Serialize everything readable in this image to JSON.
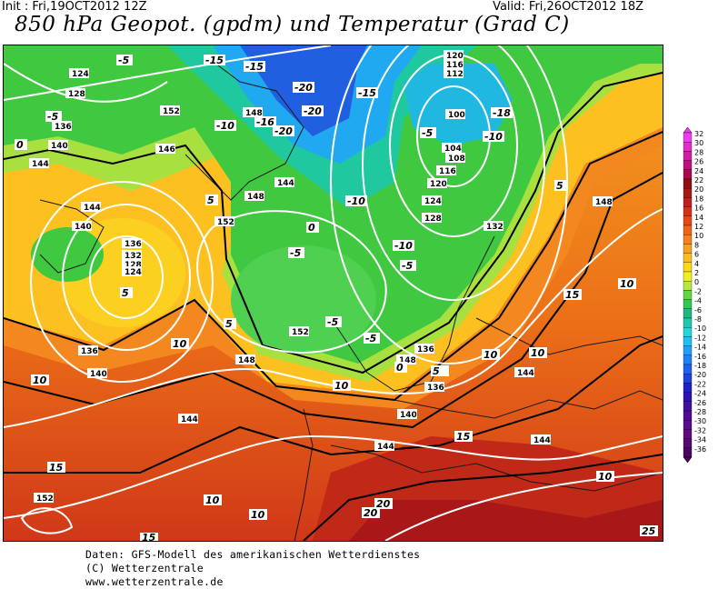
{
  "header": {
    "init": "Init : Fri,19OCT2012 12Z",
    "valid": "Valid: Fri,26OCT2012 18Z",
    "title": "850 hPa Geopot. (gpdm) und Temperatur (Grad C)"
  },
  "footer": {
    "line1": "Daten: GFS-Modell des amerikanischen Wetterdienstes",
    "line2": "(C) Wetterzentrale",
    "line3": "www.wetterzentrale.de"
  },
  "legend": {
    "levels": [
      "32",
      "30",
      "28",
      "26",
      "24",
      "22",
      "20",
      "18",
      "16",
      "14",
      "12",
      "10",
      "8",
      "6",
      "4",
      "2",
      "0",
      "-2",
      "-4",
      "-6",
      "-8",
      "-10",
      "-12",
      "-14",
      "-16",
      "-18",
      "-20",
      "-22",
      "-24",
      "-26",
      "-28",
      "-30",
      "-32",
      "-34",
      "-36"
    ],
    "colors": [
      "#f03cf0",
      "#e02ec8",
      "#d01e9e",
      "#c0107a",
      "#a80a4c",
      "#901010",
      "#a81818",
      "#c02020",
      "#d83018",
      "#e84818",
      "#f06418",
      "#f48020",
      "#f8a020",
      "#fcbc20",
      "#fcd818",
      "#f0f020",
      "#b8e840",
      "#60d840",
      "#30c850",
      "#20b880",
      "#20c8b0",
      "#20d8d8",
      "#20c0f0",
      "#20a0f8",
      "#2080f8",
      "#2060f0",
      "#2040e0",
      "#2020c8",
      "#3010b0",
      "#4010a0",
      "#500a98",
      "#5a0a8c",
      "#600a80",
      "#580870",
      "#4a0660"
    ]
  },
  "map": {
    "geopotential_labels": [
      "124",
      "128",
      "136",
      "140",
      "144",
      "152",
      "148",
      "146",
      "144",
      "148",
      "152",
      "144",
      "140",
      "136",
      "132",
      "128",
      "124",
      "136",
      "140",
      "148",
      "144",
      "152",
      "148",
      "136",
      "140",
      "144",
      "132",
      "148",
      "144",
      "120",
      "116",
      "112",
      "100",
      "104",
      "108",
      "116",
      "120",
      "124",
      "128",
      "132",
      "136",
      "140",
      "144",
      "148",
      "152"
    ],
    "temperature_labels": [
      "-5",
      "0",
      "-15",
      "-15",
      "-20",
      "-20",
      "-15",
      "-10",
      "-16",
      "-5",
      "5",
      "0",
      "-5",
      "5",
      "-10",
      "-5",
      "-10",
      "-5",
      "-5",
      "5",
      "10",
      "10",
      "15",
      "10",
      "10",
      "20",
      "20",
      "15",
      "-18",
      "-10",
      "5",
      "10",
      "10",
      "15",
      "10",
      "10",
      "25",
      "-20",
      "-5",
      "5",
      "-5",
      "0",
      "10",
      "15"
    ]
  }
}
